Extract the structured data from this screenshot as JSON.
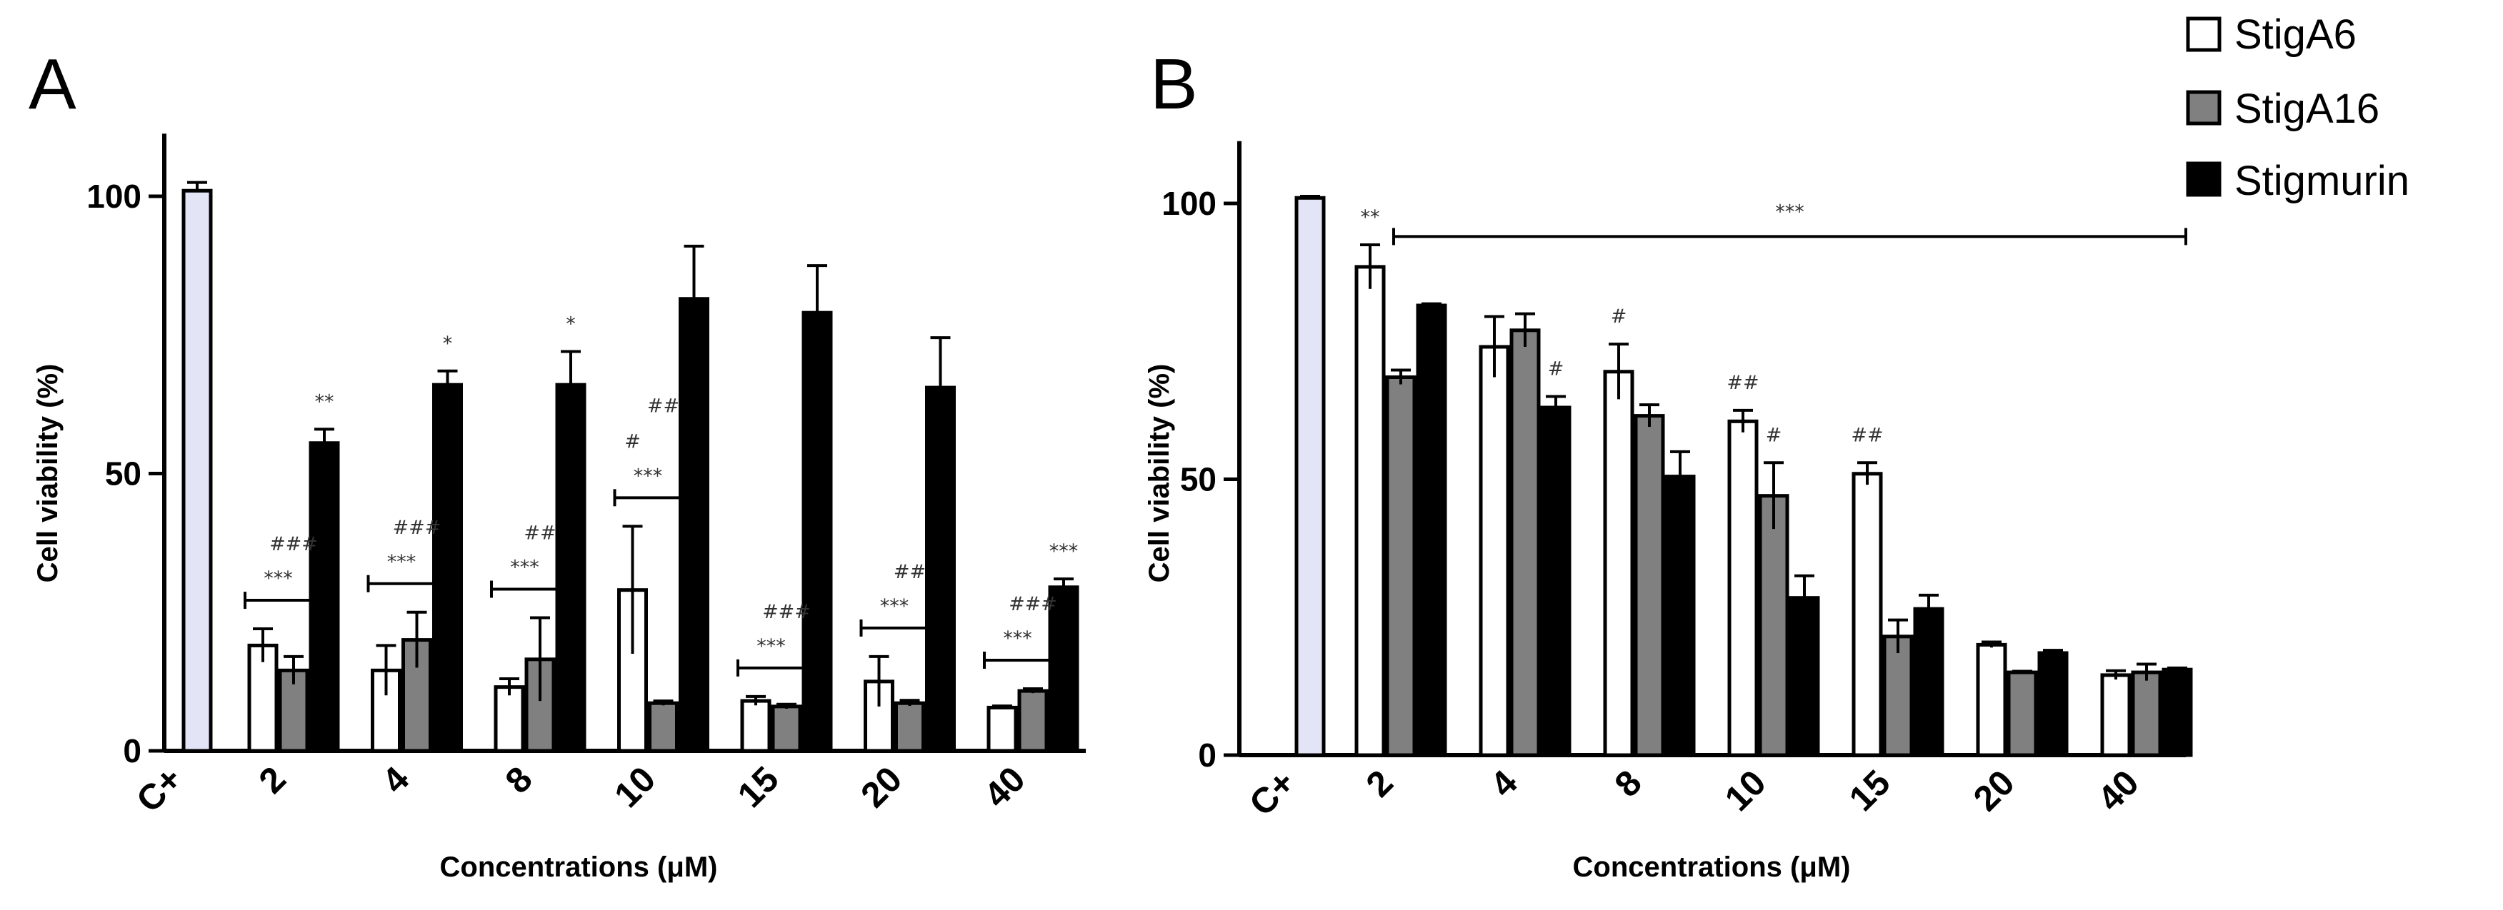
{
  "legend": [
    {
      "label": "StigA6",
      "color": "#ffffff"
    },
    {
      "label": "StigA16",
      "color": "#808080"
    },
    {
      "label": "Stigmurin",
      "color": "#000000"
    }
  ],
  "colors": {
    "control": "#e4e4f7",
    "stroke": "#000000"
  },
  "chart_data": [
    {
      "panel": "A",
      "type": "bar",
      "xlabel": "Concentrations (μM)",
      "ylabel": "Cell viability (%)",
      "ylim": [
        0,
        110
      ],
      "yticks": [
        "0",
        "50",
        "100"
      ],
      "control": {
        "label": "C+",
        "value": 101,
        "err": 1.5
      },
      "categories": [
        "2",
        "4",
        "8",
        "10",
        "15",
        "20",
        "40"
      ],
      "series": [
        {
          "name": "StigA6",
          "values": [
            19,
            14.5,
            11.5,
            29,
            9,
            12.5,
            7.8
          ],
          "errors": [
            3,
            4.5,
            1.5,
            11.5,
            0.8,
            4.5,
            0.3
          ]
        },
        {
          "name": "StigA16",
          "values": [
            14.5,
            20,
            16.5,
            8.6,
            8,
            8.6,
            10.8
          ],
          "errors": [
            2.5,
            5,
            7.5,
            0.4,
            0.4,
            0.5,
            0.4
          ]
        },
        {
          "name": "Stigmurin",
          "values": [
            55.5,
            66,
            66,
            81.5,
            79,
            65.5,
            29.5
          ],
          "errors": [
            2.5,
            2.5,
            6,
            9.5,
            8.5,
            9,
            1.5
          ]
        }
      ],
      "annotations": [
        {
          "category": "2",
          "brackets": [
            {
              "from": "StigA6",
              "to": "StigA16",
              "text": "***"
            }
          ],
          "above": [
            {
              "series": "StigA16",
              "text": "###"
            },
            {
              "series": "Stigmurin",
              "text": "**"
            }
          ]
        },
        {
          "category": "4",
          "brackets": [
            {
              "from": "StigA6",
              "to": "StigA16",
              "text": "***"
            }
          ],
          "above": [
            {
              "series": "StigA16",
              "text": "###"
            },
            {
              "series": "Stigmurin",
              "text": "*"
            }
          ]
        },
        {
          "category": "8",
          "brackets": [
            {
              "from": "StigA6",
              "to": "StigA16",
              "text": "***"
            }
          ],
          "above": [
            {
              "series": "StigA16",
              "text": "##"
            },
            {
              "series": "Stigmurin",
              "text": "*"
            }
          ]
        },
        {
          "category": "10",
          "brackets": [
            {
              "from": "StigA6",
              "to": "StigA16",
              "text": "***"
            }
          ],
          "above": [
            {
              "series": "StigA6",
              "text": "#"
            },
            {
              "series": "StigA16",
              "text": "##"
            }
          ]
        },
        {
          "category": "15",
          "brackets": [
            {
              "from": "StigA6",
              "to": "StigA16",
              "text": "***"
            }
          ],
          "above": [
            {
              "series": "StigA16",
              "text": "###"
            }
          ]
        },
        {
          "category": "20",
          "brackets": [
            {
              "from": "StigA6",
              "to": "StigA16",
              "text": "***"
            }
          ],
          "above": [
            {
              "series": "StigA16",
              "text": "##"
            }
          ]
        },
        {
          "category": "40",
          "brackets": [
            {
              "from": "StigA6",
              "to": "StigA16",
              "text": "***"
            }
          ],
          "above": [
            {
              "series": "StigA16",
              "text": "###"
            },
            {
              "series": "Stigmurin",
              "text": "***"
            }
          ]
        }
      ]
    },
    {
      "panel": "B",
      "type": "bar",
      "xlabel": "Concentrations (μM)",
      "ylabel": "Cell viability (%)",
      "ylim": [
        0,
        110
      ],
      "yticks": [
        "0",
        "50",
        "100"
      ],
      "control": {
        "label": "C+",
        "value": 101,
        "err": 0.3
      },
      "categories": [
        "2",
        "4",
        "8",
        "10",
        "15",
        "20",
        "40"
      ],
      "series": [
        {
          "name": "StigA6",
          "values": [
            88.5,
            74,
            69.5,
            60.5,
            51,
            20,
            14.5
          ],
          "errors": [
            4,
            5.5,
            5,
            2,
            2,
            0.5,
            0.8
          ]
        },
        {
          "name": "StigA16",
          "values": [
            68.5,
            77,
            61.5,
            47,
            21.5,
            15,
            15
          ],
          "errors": [
            1.3,
            3,
            2,
            6,
            3,
            0.2,
            1.5
          ]
        },
        {
          "name": "Stigmurin",
          "values": [
            81.5,
            63,
            50.5,
            28.5,
            26.5,
            18.5,
            15.5
          ],
          "errors": [
            0.3,
            2,
            4.5,
            4,
            2.5,
            0.5,
            0.3
          ]
        }
      ],
      "annotations": [
        {
          "category": "2",
          "above": [
            {
              "series": "StigA6",
              "text": "**"
            }
          ]
        },
        {
          "category": "4",
          "above": [
            {
              "series": "Stigmurin",
              "text": "#"
            }
          ]
        },
        {
          "category": "8",
          "above": [
            {
              "series": "StigA6",
              "text": "#"
            }
          ]
        },
        {
          "category": "10",
          "above": [
            {
              "series": "StigA6",
              "text": "##"
            },
            {
              "series": "StigA16",
              "text": "#"
            }
          ]
        },
        {
          "category": "15",
          "above": [
            {
              "series": "StigA6",
              "text": "##"
            }
          ]
        }
      ],
      "span_bracket": {
        "from": "2",
        "to": "40",
        "text": "***"
      }
    }
  ]
}
